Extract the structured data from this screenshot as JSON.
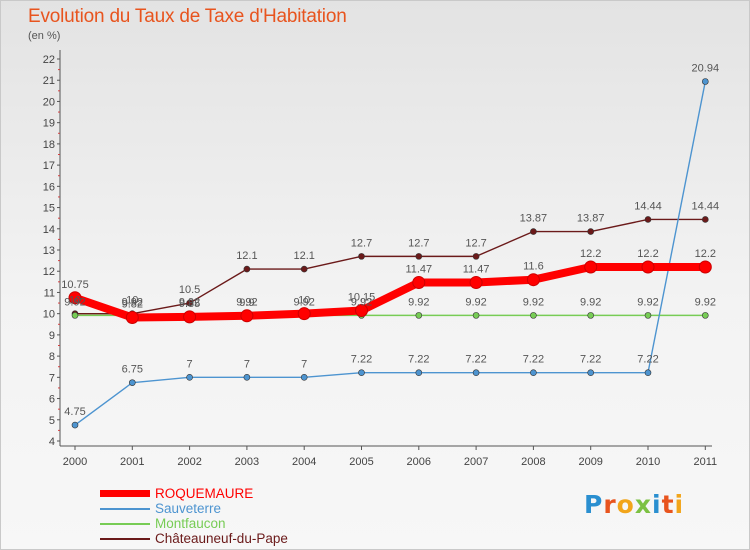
{
  "title": "Evolution du Taux de Taxe d'Habitation",
  "subtitle": "(en %)",
  "logo": "Proxiti",
  "chart_data": {
    "type": "line",
    "categories": [
      "2000",
      "2001",
      "2002",
      "2003",
      "2004",
      "2005",
      "2006",
      "2007",
      "2008",
      "2009",
      "2010",
      "2011"
    ],
    "ylim": [
      4,
      22
    ],
    "yticks": [
      4,
      5,
      6,
      7,
      8,
      9,
      10,
      11,
      12,
      13,
      14,
      15,
      16,
      17,
      18,
      19,
      20,
      21,
      22
    ],
    "grid": false,
    "series": [
      {
        "name": "Châteauneuf-du-Pape",
        "color": "#6b1a1a",
        "values": [
          10,
          10,
          10.5,
          12.1,
          12.1,
          12.7,
          12.7,
          12.7,
          13.87,
          13.87,
          14.44,
          14.44
        ],
        "labels": [
          "10",
          "10",
          "10.5",
          "12.1",
          "12.1",
          "12.7",
          "12.7",
          "12.7",
          "13.87",
          "13.87",
          "14.44",
          "14.44"
        ]
      },
      {
        "name": "Montfaucon",
        "color": "#77cc55",
        "values": [
          9.92,
          9.92,
          9.92,
          9.92,
          9.92,
          9.92,
          9.92,
          9.92,
          9.92,
          9.92,
          9.92,
          9.92
        ],
        "labels": [
          "9.92",
          "9.92",
          "9.92",
          "9.92",
          "9.92",
          "9.92",
          "9.92",
          "9.92",
          "9.92",
          "9.92",
          "9.92",
          "9.92"
        ]
      },
      {
        "name": "Sauveterre",
        "color": "#4d94d0",
        "values": [
          4.75,
          6.75,
          7,
          7,
          7,
          7.22,
          7.22,
          7.22,
          7.22,
          7.22,
          7.22,
          20.94
        ],
        "labels": [
          "4.75",
          "6.75",
          "7",
          "7",
          "7",
          "7.22",
          "7.22",
          "7.22",
          "7.22",
          "7.22",
          "7.22",
          "20.94"
        ]
      },
      {
        "name": "ROQUEMAURE",
        "color": "#ff0000",
        "values": [
          10.75,
          9.82,
          9.85,
          9.9,
          10,
          10.15,
          11.47,
          11.47,
          11.6,
          12.2,
          12.2,
          12.2
        ],
        "labels": [
          "10.75",
          "9.82",
          "9.85",
          "9.9",
          "10",
          "10.15",
          "11.47",
          "11.47",
          "11.6",
          "12.2",
          "12.2",
          "12.2"
        ]
      }
    ]
  },
  "legend": [
    {
      "label": "ROQUEMAURE",
      "color": "#ff0000"
    },
    {
      "label": "Sauveterre",
      "color": "#4d94d0"
    },
    {
      "label": "Montfaucon",
      "color": "#77cc55"
    },
    {
      "label": "Châteauneuf-du-Pape",
      "color": "#6b1a1a"
    }
  ]
}
